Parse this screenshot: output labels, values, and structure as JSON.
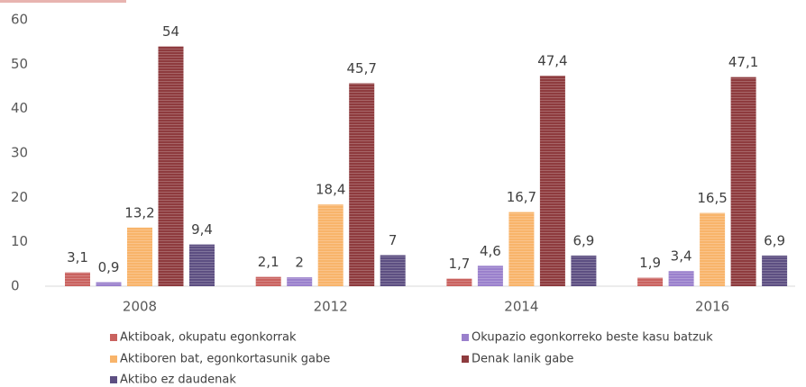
{
  "chart_data": {
    "type": "bar",
    "categories": [
      "2008",
      "2012",
      "2014",
      "2016"
    ],
    "series": [
      {
        "name": "Aktiboak, okupatu egonkorrak",
        "color": "#c9625f",
        "values": [
          3.1,
          2.1,
          1.7,
          1.9
        ],
        "value_labels": [
          "3,1",
          "2,1",
          "1,7",
          "1,9"
        ]
      },
      {
        "name": "Okupazio egonkorreko beste kasu batzuk",
        "color": "#9a80cc",
        "values": [
          0.9,
          2,
          4.6,
          3.4
        ],
        "value_labels": [
          "0,9",
          "2",
          "4,6",
          "3,4"
        ]
      },
      {
        "name": "Aktiboren bat, egonkortasunik gabe",
        "color": "#f8b46a",
        "values": [
          13.2,
          18.4,
          16.7,
          16.5
        ],
        "value_labels": [
          "13,2",
          "18,4",
          "16,7",
          "16,5"
        ]
      },
      {
        "name": "Denak lanik gabe",
        "color": "#8e3b3e",
        "values": [
          54,
          45.7,
          47.4,
          47.1
        ],
        "value_labels": [
          "54",
          "45,7",
          "47,4",
          "47,1"
        ]
      },
      {
        "name": "Aktibo ez daudenak",
        "color": "#5d4f82",
        "values": [
          9.4,
          7,
          6.9,
          6.9
        ],
        "value_labels": [
          "9,4",
          "7",
          "6,9",
          "6,9"
        ]
      }
    ],
    "ylim": [
      0,
      60
    ],
    "yticks": [
      0,
      10,
      20,
      30,
      40,
      50,
      60
    ],
    "grid": false
  }
}
